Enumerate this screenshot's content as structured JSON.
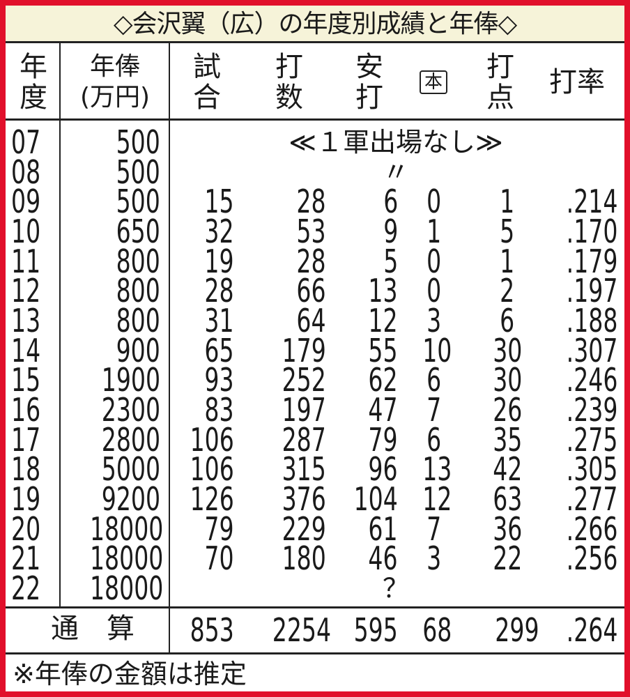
{
  "title": "◇会沢翼（広）の年度別成績と年俸◇",
  "accent_color": "#e1102b",
  "headers": {
    "year": [
      "年",
      "度"
    ],
    "salary": [
      "年俸",
      "(万円)"
    ],
    "games": [
      "試",
      "合"
    ],
    "at_bats": [
      "打",
      "数"
    ],
    "hits": [
      "安",
      "打"
    ],
    "home_runs": "本",
    "rbi": [
      "打",
      "点"
    ],
    "avg": "打率"
  },
  "rows": [
    {
      "year": "07",
      "salary": "500",
      "note": "≪１軍出場なし≫"
    },
    {
      "year": "08",
      "salary": "500",
      "note": "〃"
    },
    {
      "year": "09",
      "salary": "500",
      "stats": [
        "15",
        "28",
        "6",
        "0",
        "1",
        ".214"
      ]
    },
    {
      "year": "10",
      "salary": "650",
      "stats": [
        "32",
        "53",
        "9",
        "1",
        "5",
        ".170"
      ]
    },
    {
      "year": "11",
      "salary": "800",
      "stats": [
        "19",
        "28",
        "5",
        "0",
        "1",
        ".179"
      ]
    },
    {
      "year": "12",
      "salary": "800",
      "stats": [
        "28",
        "66",
        "13",
        "0",
        "2",
        ".197"
      ]
    },
    {
      "year": "13",
      "salary": "800",
      "stats": [
        "31",
        "64",
        "12",
        "3",
        "6",
        ".188"
      ]
    },
    {
      "year": "14",
      "salary": "900",
      "stats": [
        "65",
        "179",
        "55",
        "10",
        "30",
        ".307"
      ]
    },
    {
      "year": "15",
      "salary": "1900",
      "stats": [
        "93",
        "252",
        "62",
        "6",
        "30",
        ".246"
      ]
    },
    {
      "year": "16",
      "salary": "2300",
      "stats": [
        "83",
        "197",
        "47",
        "7",
        "26",
        ".239"
      ]
    },
    {
      "year": "17",
      "salary": "2800",
      "stats": [
        "106",
        "287",
        "79",
        "6",
        "35",
        ".275"
      ]
    },
    {
      "year": "18",
      "salary": "5000",
      "stats": [
        "106",
        "315",
        "96",
        "13",
        "42",
        ".305"
      ]
    },
    {
      "year": "19",
      "salary": "9200",
      "stats": [
        "126",
        "376",
        "104",
        "12",
        "63",
        ".277"
      ]
    },
    {
      "year": "20",
      "salary": "18000",
      "stats": [
        "79",
        "229",
        "61",
        "7",
        "36",
        ".266"
      ]
    },
    {
      "year": "21",
      "salary": "18000",
      "stats": [
        "70",
        "180",
        "46",
        "3",
        "22",
        ".256"
      ]
    },
    {
      "year": "22",
      "salary": "18000",
      "note": "？"
    }
  ],
  "total": {
    "label": "通　算",
    "stats": [
      "853",
      "2254",
      "595",
      "68",
      "299",
      ".264"
    ]
  },
  "footnote": "※年俸の金額は推定"
}
